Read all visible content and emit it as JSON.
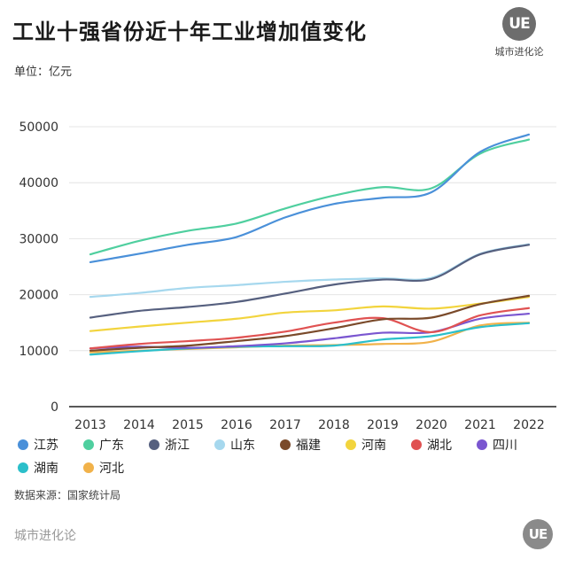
{
  "header": {
    "title": "工业十强省份近十年工业增加值变化",
    "unit": "单位：亿元",
    "brand": "城市进化论",
    "logo_text": "UE"
  },
  "footer": {
    "source": "数据来源：国家统计局",
    "brand": "城市进化论",
    "logo_text": "UE"
  },
  "chart_data": {
    "type": "line",
    "title": "工业十强省份近十年工业增加值变化",
    "ylabel": "亿元",
    "xlabel": "",
    "x": [
      2013,
      2014,
      2015,
      2016,
      2017,
      2018,
      2019,
      2020,
      2021,
      2022
    ],
    "ylim": [
      0,
      50000
    ],
    "yticks": [
      0,
      10000,
      20000,
      30000,
      40000,
      50000
    ],
    "grid": true,
    "legend_position": "bottom",
    "series": [
      {
        "name": "江苏",
        "color": "#4a90d9",
        "values": [
          25800,
          27300,
          28900,
          30300,
          33800,
          36200,
          37300,
          38300,
          45500,
          48600
        ]
      },
      {
        "name": "广东",
        "color": "#4fcf9f",
        "values": [
          27200,
          29600,
          31400,
          32700,
          35400,
          37700,
          39200,
          39000,
          45200,
          47700
        ]
      },
      {
        "name": "浙江",
        "color": "#56607f",
        "values": [
          15900,
          17100,
          17800,
          18700,
          20200,
          21800,
          22700,
          22800,
          27200,
          28900
        ]
      },
      {
        "name": "山东",
        "color": "#a6d8ee",
        "values": [
          19600,
          20300,
          21200,
          21700,
          22300,
          22700,
          22900,
          23000,
          27300,
          29000
        ]
      },
      {
        "name": "福建",
        "color": "#7a4a2a",
        "values": [
          10000,
          10500,
          10900,
          11700,
          12600,
          14000,
          15600,
          15900,
          18300,
          19800
        ]
      },
      {
        "name": "河南",
        "color": "#f2d43d",
        "values": [
          13500,
          14300,
          15000,
          15700,
          16800,
          17200,
          17900,
          17500,
          18400,
          19600
        ]
      },
      {
        "name": "湖北",
        "color": "#e05252",
        "values": [
          10400,
          11200,
          11700,
          12300,
          13400,
          15000,
          15800,
          13300,
          16300,
          17600
        ]
      },
      {
        "name": "四川",
        "color": "#7a56d0",
        "values": [
          10400,
          10700,
          10500,
          10800,
          11300,
          12200,
          13200,
          13300,
          15700,
          16600
        ]
      },
      {
        "name": "湖南",
        "color": "#2bbfca",
        "values": [
          9300,
          9900,
          10400,
          10700,
          10800,
          10900,
          12000,
          12600,
          14200,
          14900
        ]
      },
      {
        "name": "河北",
        "color": "#f1b24a",
        "values": [
          9700,
          10000,
          10300,
          10600,
          10900,
          11000,
          11200,
          11600,
          14500,
          15000
        ]
      }
    ]
  }
}
